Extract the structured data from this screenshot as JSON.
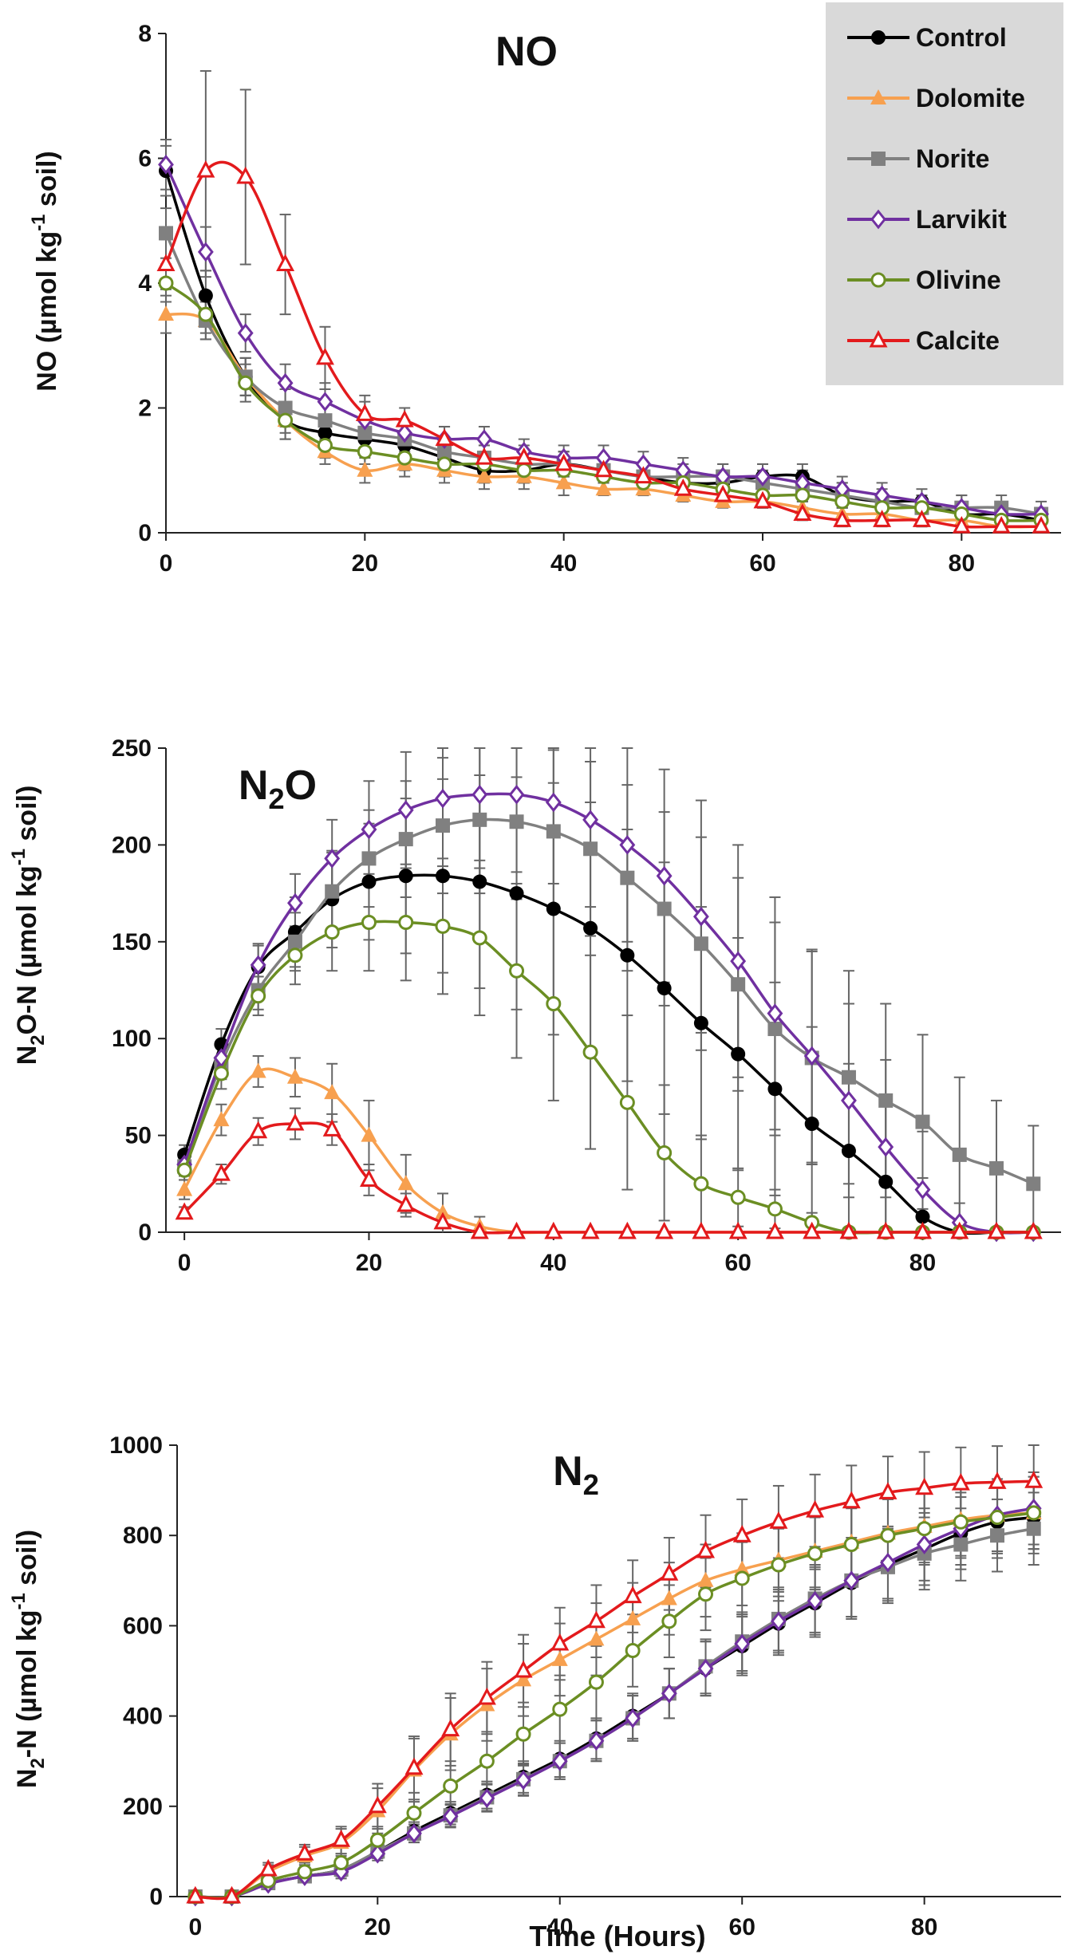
{
  "chart_data": [
    {
      "type": "line",
      "title": "NO",
      "ylabel_parts": [
        "NO (µmol kg",
        "-1",
        " soil)"
      ],
      "xlim": [
        0,
        90
      ],
      "ylim": [
        0,
        8
      ],
      "xticks": [
        "0",
        "20",
        "40",
        "60",
        "80"
      ],
      "yticks": [
        "0",
        "2",
        "4",
        "6",
        "8"
      ],
      "legend": {
        "position": "top-right",
        "entries": [
          "Control",
          "Dolomite",
          "Norite",
          "Larvikit",
          "Olivine",
          "Calcite"
        ]
      },
      "x": [
        0,
        4,
        8,
        12,
        16,
        20,
        24,
        28,
        32,
        36,
        40,
        44,
        48,
        52,
        56,
        60,
        64,
        68,
        72,
        76,
        80,
        84,
        88
      ],
      "series": [
        {
          "name": "Control",
          "color": "#000000",
          "marker": "circle",
          "values": [
            5.8,
            3.8,
            2.5,
            1.8,
            1.6,
            1.5,
            1.4,
            1.2,
            1.0,
            1.0,
            1.1,
            1.0,
            0.9,
            0.8,
            0.8,
            0.9,
            0.9,
            0.6,
            0.5,
            0.5,
            0.3,
            0.3,
            0.2
          ],
          "errors": [
            0.4,
            0.4,
            0.3,
            0.3,
            0.2,
            0.2,
            0.2,
            0.2,
            0.2,
            0.2,
            0.2,
            0.2,
            0.2,
            0.2,
            0.2,
            0.2,
            0.2,
            0.2,
            0.1,
            0.1,
            0.1,
            0.1,
            0.1
          ]
        },
        {
          "name": "Dolomite",
          "color": "#f7a04f",
          "marker": "triangle-filled",
          "values": [
            3.5,
            3.4,
            2.5,
            1.8,
            1.3,
            1.0,
            1.1,
            1.0,
            0.9,
            0.9,
            0.8,
            0.7,
            0.7,
            0.6,
            0.5,
            0.5,
            0.4,
            0.3,
            0.3,
            0.2,
            0.2,
            0.1,
            0.1
          ],
          "errors": [
            0.3,
            0.3,
            0.3,
            0.2,
            0.2,
            0.2,
            0.2,
            0.2,
            0.2,
            0.2,
            0.2,
            0.1,
            0.1,
            0.1,
            0.1,
            0.1,
            0.1,
            0.1,
            0.1,
            0.1,
            0.1,
            0.1,
            0.1
          ]
        },
        {
          "name": "Norite",
          "color": "#808080",
          "marker": "square-filled",
          "values": [
            4.8,
            3.4,
            2.5,
            2.0,
            1.8,
            1.6,
            1.5,
            1.3,
            1.2,
            1.1,
            1.1,
            1.0,
            0.9,
            0.9,
            0.9,
            0.8,
            0.7,
            0.6,
            0.5,
            0.4,
            0.4,
            0.4,
            0.3
          ],
          "errors": [
            0.4,
            0.3,
            0.3,
            0.3,
            0.3,
            0.3,
            0.3,
            0.2,
            0.2,
            0.2,
            0.2,
            0.2,
            0.2,
            0.2,
            0.2,
            0.2,
            0.2,
            0.2,
            0.2,
            0.2,
            0.2,
            0.2,
            0.2
          ]
        },
        {
          "name": "Larvikit",
          "color": "#7030a0",
          "marker": "diamond-open",
          "values": [
            5.9,
            4.5,
            3.2,
            2.4,
            2.1,
            1.8,
            1.6,
            1.5,
            1.5,
            1.3,
            1.2,
            1.2,
            1.1,
            1.0,
            0.9,
            0.9,
            0.8,
            0.7,
            0.6,
            0.5,
            0.4,
            0.3,
            0.3
          ],
          "errors": [
            0.4,
            0.4,
            0.3,
            0.3,
            0.3,
            0.3,
            0.2,
            0.2,
            0.2,
            0.2,
            0.2,
            0.2,
            0.2,
            0.2,
            0.2,
            0.2,
            0.2,
            0.2,
            0.2,
            0.2,
            0.2,
            0.1,
            0.1
          ]
        },
        {
          "name": "Olivine",
          "color": "#6b8e23",
          "marker": "circle-open",
          "values": [
            4.0,
            3.5,
            2.4,
            1.8,
            1.4,
            1.3,
            1.2,
            1.1,
            1.1,
            1.0,
            1.0,
            0.9,
            0.8,
            0.8,
            0.7,
            0.6,
            0.6,
            0.5,
            0.4,
            0.4,
            0.3,
            0.2,
            0.2
          ],
          "errors": [
            0.3,
            0.3,
            0.3,
            0.3,
            0.2,
            0.2,
            0.2,
            0.2,
            0.2,
            0.2,
            0.2,
            0.2,
            0.2,
            0.2,
            0.2,
            0.2,
            0.2,
            0.2,
            0.1,
            0.1,
            0.1,
            0.1,
            0.1
          ]
        },
        {
          "name": "Calcite",
          "color": "#e31a1c",
          "marker": "triangle-open",
          "values": [
            4.3,
            5.8,
            5.7,
            4.3,
            2.8,
            1.9,
            1.8,
            1.5,
            1.2,
            1.2,
            1.1,
            1.0,
            0.9,
            0.7,
            0.6,
            0.5,
            0.3,
            0.2,
            0.2,
            0.2,
            0.1,
            0.1,
            0.1
          ],
          "errors": [
            0.4,
            1.6,
            1.4,
            0.8,
            0.5,
            0.3,
            0.2,
            0.2,
            0.2,
            0.2,
            0.2,
            0.2,
            0.2,
            0.2,
            0.1,
            0.1,
            0.1,
            0.1,
            0.1,
            0.1,
            0.1,
            0.1,
            0.1
          ]
        }
      ]
    },
    {
      "type": "line",
      "title_parts": [
        "N",
        "2",
        "O"
      ],
      "ylabel_parts": [
        "N",
        "2",
        "O-N  (µmol kg",
        "-1",
        " soil)"
      ],
      "xlim": [
        -2,
        95
      ],
      "ylim": [
        0,
        250
      ],
      "xticks": [
        "0",
        "20",
        "40",
        "60",
        "80"
      ],
      "yticks": [
        "0",
        "50",
        "100",
        "150",
        "200",
        "250"
      ],
      "x": [
        0,
        4,
        8,
        12,
        16,
        20,
        24,
        28,
        32,
        36,
        40,
        44,
        48,
        52,
        56,
        60,
        64,
        68,
        72,
        76,
        80,
        84,
        88,
        92
      ],
      "series": [
        {
          "name": "Control",
          "color": "#000000",
          "marker": "circle",
          "values": [
            40,
            97,
            137,
            155,
            172,
            181,
            184,
            184,
            181,
            175,
            167,
            157,
            143,
            126,
            108,
            92,
            74,
            56,
            42,
            26,
            8,
            0,
            0,
            0
          ],
          "errors": [
            5,
            8,
            12,
            18,
            25,
            30,
            40,
            50,
            55,
            60,
            65,
            65,
            65,
            65,
            60,
            60,
            55,
            50,
            45,
            40,
            20,
            5,
            0,
            0
          ]
        },
        {
          "name": "Dolomite",
          "color": "#f7a04f",
          "marker": "triangle-filled",
          "values": [
            22,
            58,
            83,
            80,
            72,
            50,
            25,
            10,
            3,
            0,
            0,
            0,
            0,
            0,
            0,
            0,
            0,
            0,
            0,
            0,
            0,
            0,
            0,
            0
          ],
          "errors": [
            5,
            8,
            8,
            10,
            15,
            18,
            15,
            10,
            5,
            0,
            0,
            0,
            0,
            0,
            0,
            0,
            0,
            0,
            0,
            0,
            0,
            0,
            0,
            0
          ]
        },
        {
          "name": "Norite",
          "color": "#808080",
          "marker": "square-filled",
          "values": [
            34,
            87,
            125,
            150,
            176,
            193,
            203,
            210,
            213,
            212,
            207,
            198,
            183,
            167,
            149,
            128,
            105,
            90,
            80,
            68,
            57,
            40,
            33,
            25
          ],
          "errors": [
            5,
            8,
            10,
            15,
            20,
            25,
            30,
            35,
            38,
            40,
            42,
            45,
            48,
            50,
            55,
            55,
            55,
            55,
            55,
            50,
            45,
            40,
            35,
            30
          ]
        },
        {
          "name": "Larvikit",
          "color": "#7030a0",
          "marker": "diamond-open",
          "values": [
            35,
            90,
            138,
            170,
            193,
            208,
            218,
            224,
            226,
            226,
            222,
            213,
            200,
            184,
            163,
            140,
            113,
            91,
            68,
            44,
            22,
            5,
            0,
            0
          ],
          "errors": [
            5,
            8,
            10,
            15,
            20,
            25,
            30,
            35,
            38,
            40,
            42,
            45,
            50,
            55,
            60,
            60,
            60,
            55,
            50,
            45,
            30,
            10,
            0,
            0
          ]
        },
        {
          "name": "Olivine",
          "color": "#6b8e23",
          "marker": "circle-open",
          "values": [
            32,
            82,
            122,
            143,
            155,
            160,
            160,
            158,
            152,
            135,
            118,
            93,
            67,
            41,
            25,
            18,
            12,
            5,
            0,
            0,
            0,
            0,
            0,
            0
          ],
          "errors": [
            5,
            8,
            10,
            15,
            20,
            25,
            30,
            35,
            40,
            45,
            50,
            50,
            45,
            35,
            25,
            15,
            10,
            5,
            0,
            0,
            0,
            0,
            0,
            0
          ]
        },
        {
          "name": "Calcite",
          "color": "#e31a1c",
          "marker": "triangle-open",
          "values": [
            10,
            30,
            52,
            56,
            53,
            27,
            14,
            5,
            0,
            0,
            0,
            0,
            0,
            0,
            0,
            0,
            0,
            0,
            0,
            0,
            0,
            0,
            0,
            0
          ],
          "errors": [
            3,
            5,
            7,
            8,
            8,
            8,
            6,
            3,
            0,
            0,
            0,
            0,
            0,
            0,
            0,
            0,
            0,
            0,
            0,
            0,
            0,
            0,
            0,
            0
          ]
        }
      ]
    },
    {
      "type": "line",
      "title_parts": [
        "N",
        "2"
      ],
      "ylabel_parts": [
        "N",
        "2",
        "-N  (µmol kg",
        "-1",
        " soil)"
      ],
      "xlabel": "Time (Hours)",
      "xlim": [
        -2,
        95
      ],
      "ylim": [
        0,
        1000
      ],
      "xticks": [
        "0",
        "20",
        "40",
        "60",
        "80"
      ],
      "yticks": [
        "0",
        "200",
        "400",
        "600",
        "800",
        "1000"
      ],
      "x": [
        0,
        4,
        8,
        12,
        16,
        20,
        24,
        28,
        32,
        36,
        40,
        44,
        48,
        52,
        56,
        60,
        64,
        68,
        72,
        76,
        80,
        84,
        88,
        92
      ],
      "series": [
        {
          "name": "Control",
          "color": "#000000",
          "marker": "circle",
          "values": [
            0,
            0,
            30,
            45,
            60,
            100,
            145,
            185,
            225,
            265,
            305,
            350,
            400,
            450,
            505,
            555,
            605,
            650,
            695,
            735,
            770,
            805,
            830,
            840
          ],
          "errors": [
            0,
            0,
            10,
            10,
            15,
            15,
            20,
            25,
            30,
            35,
            40,
            45,
            50,
            55,
            60,
            65,
            70,
            75,
            80,
            80,
            80,
            80,
            80,
            80
          ]
        },
        {
          "name": "Dolomite",
          "color": "#f7a04f",
          "marker": "triangle-filled",
          "values": [
            0,
            0,
            55,
            90,
            120,
            190,
            280,
            360,
            425,
            480,
            525,
            570,
            615,
            660,
            700,
            725,
            745,
            765,
            785,
            805,
            820,
            835,
            845,
            850
          ],
          "errors": [
            0,
            0,
            15,
            20,
            30,
            50,
            70,
            80,
            80,
            80,
            80,
            80,
            80,
            80,
            80,
            80,
            80,
            80,
            80,
            80,
            80,
            80,
            80,
            80
          ]
        },
        {
          "name": "Norite",
          "color": "#808080",
          "marker": "square-filled",
          "values": [
            0,
            0,
            30,
            45,
            60,
            100,
            140,
            180,
            220,
            260,
            300,
            345,
            395,
            450,
            510,
            565,
            615,
            660,
            700,
            730,
            760,
            780,
            800,
            815
          ],
          "errors": [
            0,
            0,
            10,
            10,
            15,
            15,
            20,
            25,
            30,
            35,
            40,
            45,
            50,
            55,
            60,
            65,
            70,
            75,
            80,
            80,
            80,
            80,
            80,
            80
          ]
        },
        {
          "name": "Larvikit",
          "color": "#7030a0",
          "marker": "diamond-open",
          "values": [
            0,
            0,
            28,
            45,
            55,
            95,
            140,
            178,
            218,
            258,
            300,
            345,
            395,
            450,
            505,
            560,
            610,
            655,
            700,
            740,
            780,
            815,
            845,
            860
          ],
          "errors": [
            0,
            0,
            10,
            10,
            15,
            15,
            20,
            25,
            30,
            35,
            40,
            45,
            50,
            55,
            60,
            65,
            70,
            75,
            80,
            80,
            80,
            80,
            80,
            80
          ]
        },
        {
          "name": "Olivine",
          "color": "#6b8e23",
          "marker": "circle-open",
          "values": [
            0,
            0,
            35,
            55,
            75,
            125,
            185,
            245,
            300,
            360,
            415,
            475,
            545,
            610,
            670,
            705,
            735,
            760,
            780,
            800,
            815,
            830,
            840,
            850
          ],
          "errors": [
            0,
            0,
            10,
            15,
            20,
            30,
            45,
            55,
            65,
            70,
            75,
            80,
            80,
            80,
            80,
            80,
            80,
            80,
            80,
            80,
            80,
            80,
            80,
            80
          ]
        },
        {
          "name": "Calcite",
          "color": "#e31a1c",
          "marker": "triangle-open",
          "values": [
            0,
            0,
            60,
            95,
            125,
            200,
            285,
            370,
            440,
            500,
            560,
            610,
            665,
            715,
            765,
            800,
            830,
            855,
            875,
            895,
            905,
            915,
            918,
            920
          ],
          "errors": [
            0,
            0,
            15,
            20,
            30,
            50,
            70,
            80,
            80,
            80,
            80,
            80,
            80,
            80,
            80,
            80,
            80,
            80,
            80,
            80,
            80,
            80,
            80,
            80
          ]
        }
      ]
    }
  ]
}
